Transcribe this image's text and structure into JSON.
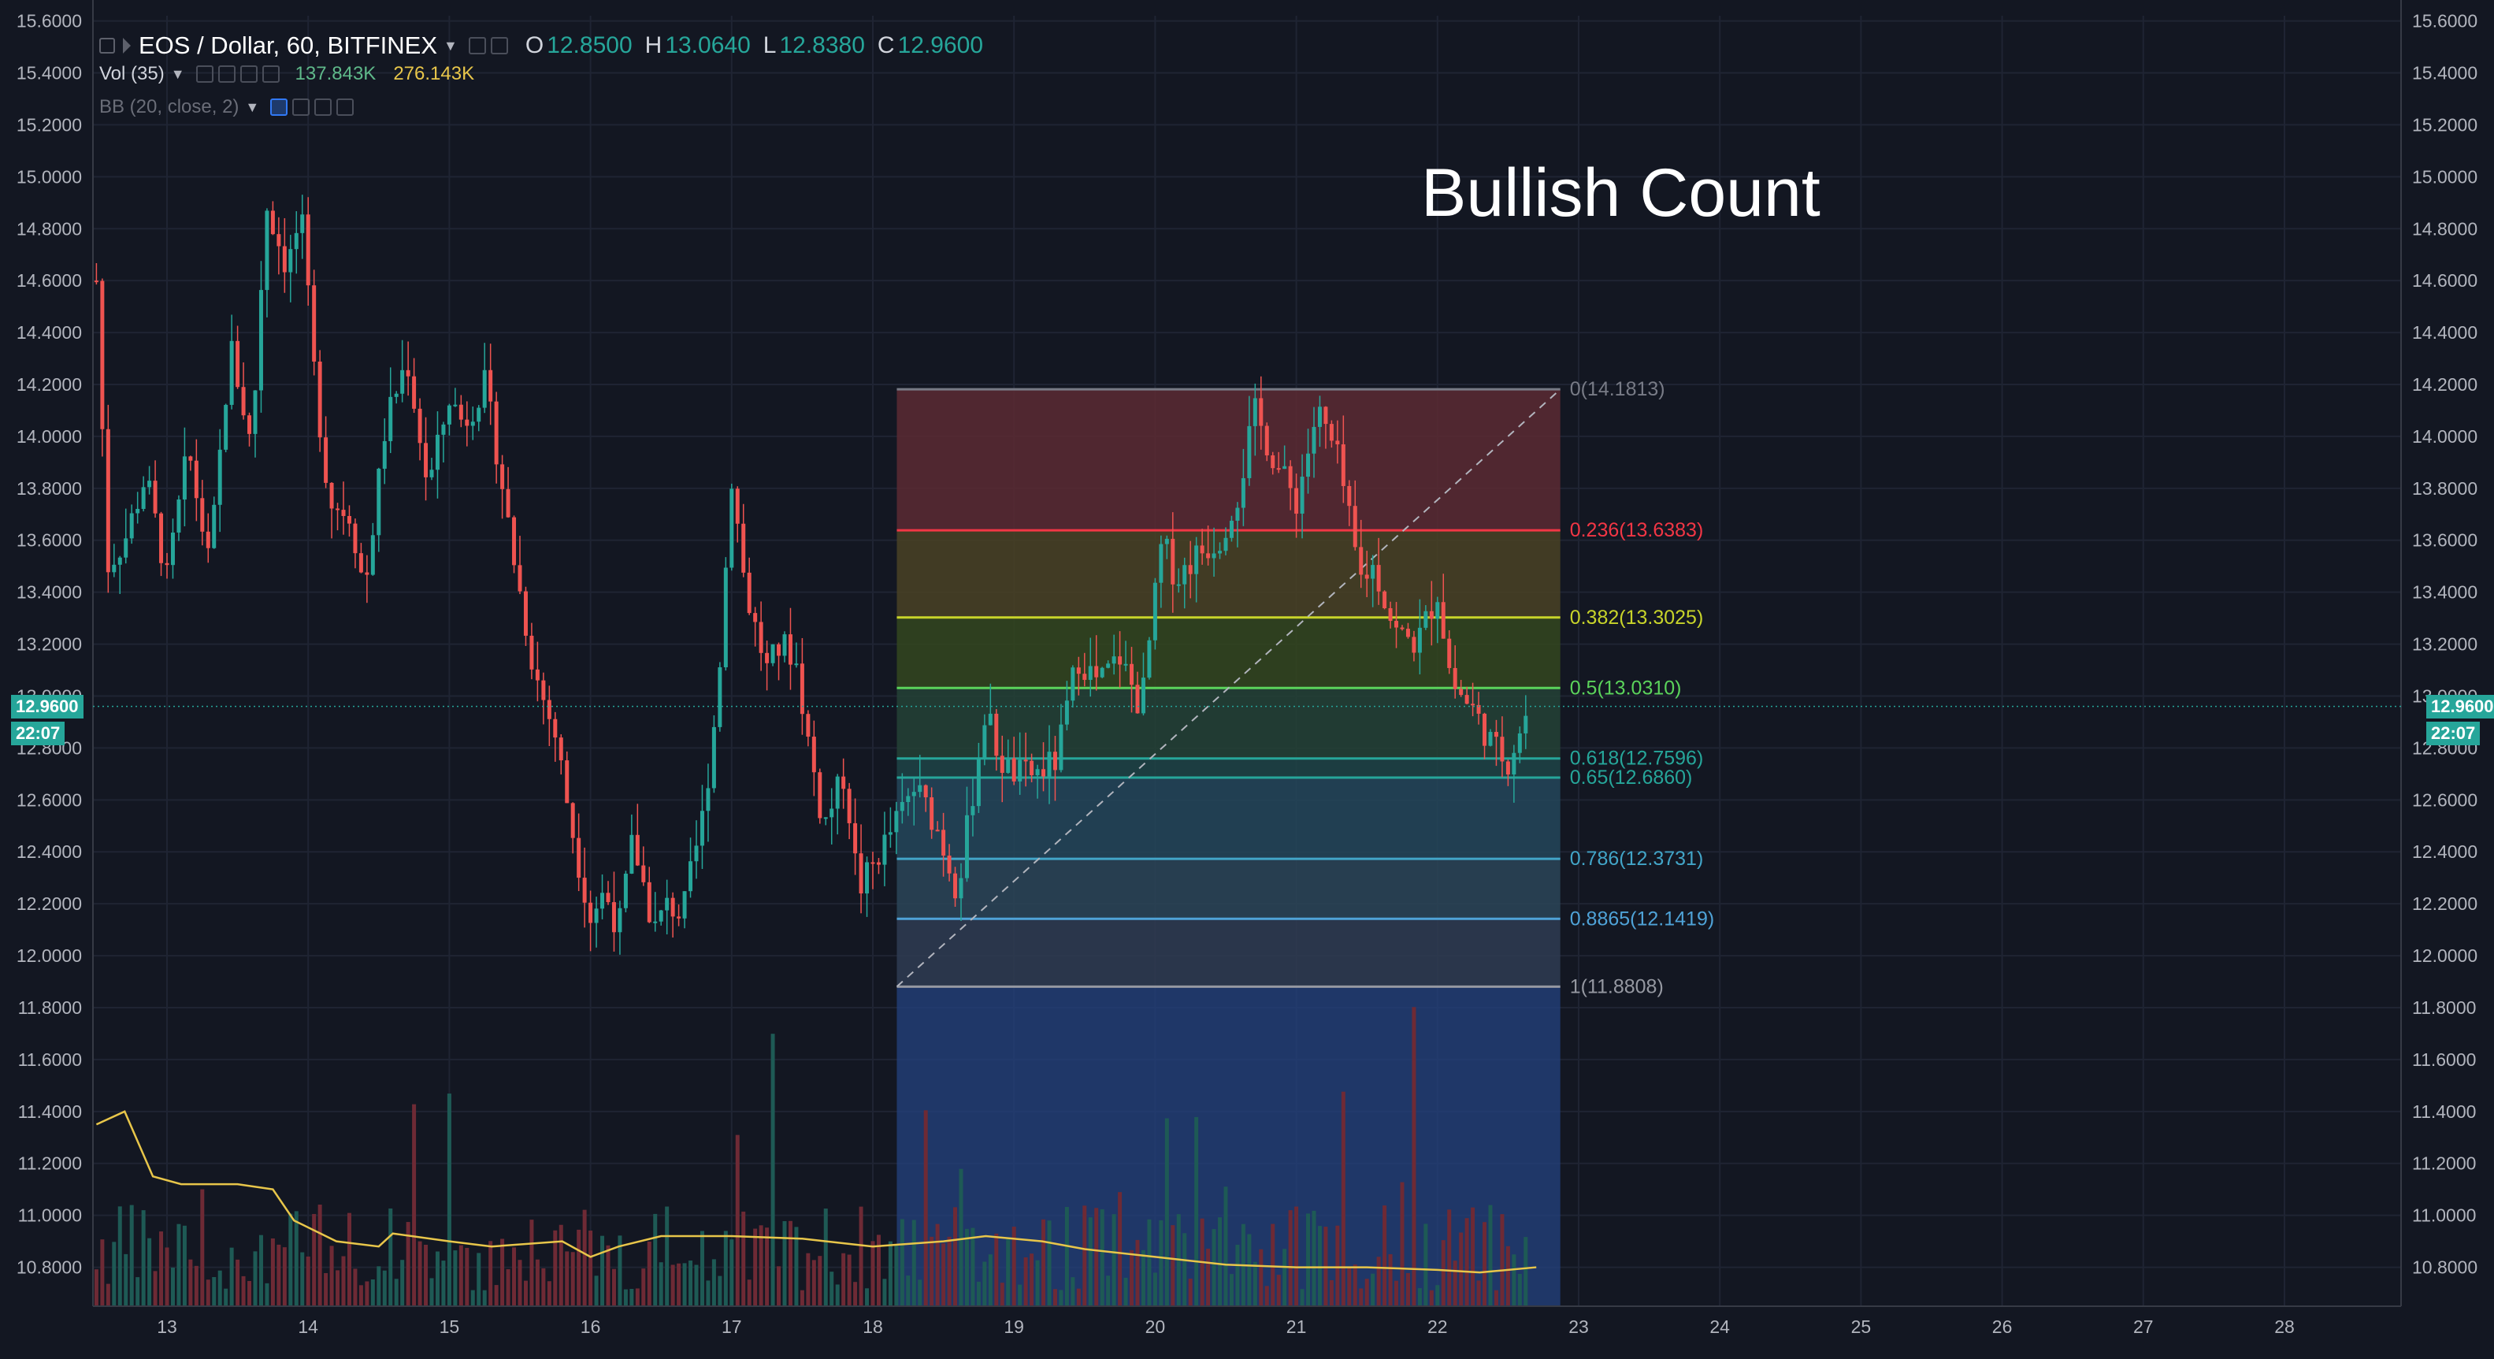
{
  "legend": {
    "symbol": "EOS / Dollar, 60, BITFINEX",
    "open_key": "O",
    "open": "12.8500",
    "high_key": "H",
    "high": "13.0640",
    "low_key": "L",
    "low": "12.8380",
    "close_key": "C",
    "close": "12.9600",
    "volume_label": "Vol (35)",
    "volume_value": "137.843K",
    "volume_ma": "276.143K",
    "bb_label": "BB (20, close, 2)"
  },
  "annotation": "Bullish Count",
  "last_price_label": "12.9600",
  "countdown_label": "22:07",
  "colors": {
    "background": "#131722",
    "up": "#26a69a",
    "down": "#ef5350",
    "volume_ma": "#e8c64a",
    "price_tag": "#26a69a"
  },
  "chart_data": {
    "type": "candlestick",
    "title": "EOS / Dollar, 60, BITFINEX",
    "x_axis": {
      "ticks": [
        "13",
        "14",
        "15",
        "16",
        "17",
        "18",
        "19",
        "20",
        "21",
        "22",
        "23",
        "24",
        "25",
        "26",
        "27",
        "28"
      ],
      "unit": "day of month"
    },
    "y_axis": {
      "range": [
        10.65,
        15.62
      ],
      "ticks": [
        "15.6000",
        "15.4000",
        "15.2000",
        "15.0000",
        "14.8000",
        "14.6000",
        "14.4000",
        "14.2000",
        "14.0000",
        "13.8000",
        "13.6000",
        "13.4000",
        "13.2000",
        "13.0000",
        "12.8000",
        "12.6000",
        "12.4000",
        "12.2000",
        "12.0000",
        "11.8000",
        "11.6000",
        "11.4000",
        "11.2000",
        "11.0000",
        "10.8000"
      ]
    },
    "price_path": [
      [
        12.5,
        14.6
      ],
      [
        12.58,
        13.5
      ],
      [
        12.7,
        13.6
      ],
      [
        12.85,
        13.85
      ],
      [
        13.0,
        13.45
      ],
      [
        13.15,
        13.95
      ],
      [
        13.3,
        13.5
      ],
      [
        13.45,
        14.35
      ],
      [
        13.6,
        13.95
      ],
      [
        13.7,
        14.9
      ],
      [
        13.85,
        14.65
      ],
      [
        13.95,
        14.85
      ],
      [
        14.05,
        14.2
      ],
      [
        14.15,
        13.75
      ],
      [
        14.3,
        13.7
      ],
      [
        14.4,
        13.4
      ],
      [
        14.55,
        14.05
      ],
      [
        14.7,
        14.3
      ],
      [
        14.85,
        13.8
      ],
      [
        15.0,
        14.15
      ],
      [
        15.1,
        14.05
      ],
      [
        15.25,
        14.2
      ],
      [
        15.35,
        13.9
      ],
      [
        15.45,
        13.55
      ],
      [
        15.6,
        13.1
      ],
      [
        15.75,
        12.85
      ],
      [
        15.9,
        12.4
      ],
      [
        16.0,
        12.15
      ],
      [
        16.1,
        12.25
      ],
      [
        16.2,
        12.1
      ],
      [
        16.3,
        12.45
      ],
      [
        16.45,
        12.1
      ],
      [
        16.55,
        12.2
      ],
      [
        16.65,
        12.15
      ],
      [
        16.8,
        12.55
      ],
      [
        16.9,
        13.0
      ],
      [
        17.0,
        13.85
      ],
      [
        17.1,
        13.4
      ],
      [
        17.25,
        13.1
      ],
      [
        17.35,
        13.2
      ],
      [
        17.45,
        13.15
      ],
      [
        17.55,
        12.8
      ],
      [
        17.65,
        12.5
      ],
      [
        17.8,
        12.7
      ],
      [
        17.9,
        12.25
      ],
      [
        18.0,
        12.35
      ],
      [
        18.15,
        12.5
      ],
      [
        18.3,
        12.65
      ],
      [
        18.45,
        12.5
      ],
      [
        18.6,
        12.25
      ],
      [
        18.7,
        12.6
      ],
      [
        18.8,
        12.95
      ],
      [
        18.9,
        12.75
      ],
      [
        19.0,
        12.7
      ],
      [
        19.15,
        12.7
      ],
      [
        19.3,
        12.75
      ],
      [
        19.45,
        13.15
      ],
      [
        19.6,
        13.05
      ],
      [
        19.75,
        13.15
      ],
      [
        19.9,
        12.95
      ],
      [
        20.05,
        13.6
      ],
      [
        20.15,
        13.45
      ],
      [
        20.3,
        13.55
      ],
      [
        20.45,
        13.6
      ],
      [
        20.6,
        13.8
      ],
      [
        20.7,
        14.1
      ],
      [
        20.85,
        13.9
      ],
      [
        21.0,
        13.75
      ],
      [
        21.15,
        14.1
      ],
      [
        21.3,
        13.9
      ],
      [
        21.45,
        13.45
      ],
      [
        21.55,
        13.5
      ],
      [
        21.7,
        13.25
      ],
      [
        21.85,
        13.2
      ],
      [
        22.0,
        13.4
      ],
      [
        22.1,
        13.05
      ],
      [
        22.25,
        12.95
      ],
      [
        22.4,
        12.8
      ],
      [
        22.5,
        12.75
      ],
      [
        22.65,
        12.96
      ]
    ],
    "volume_series": {
      "name": "Vol (35)",
      "moving_average": [
        [
          12.5,
          11.35
        ],
        [
          12.7,
          11.4
        ],
        [
          12.9,
          11.15
        ],
        [
          13.1,
          11.12
        ],
        [
          13.5,
          11.12
        ],
        [
          13.75,
          11.1
        ],
        [
          13.9,
          10.98
        ],
        [
          14.2,
          10.9
        ],
        [
          14.5,
          10.88
        ],
        [
          14.6,
          10.93
        ],
        [
          15.0,
          10.9
        ],
        [
          15.3,
          10.88
        ],
        [
          15.8,
          10.9
        ],
        [
          16.0,
          10.84
        ],
        [
          16.2,
          10.88
        ],
        [
          16.5,
          10.92
        ],
        [
          17.0,
          10.92
        ],
        [
          17.5,
          10.91
        ],
        [
          18.0,
          10.88
        ],
        [
          18.5,
          10.9
        ],
        [
          18.8,
          10.92
        ],
        [
          19.2,
          10.9
        ],
        [
          19.5,
          10.87
        ],
        [
          20.0,
          10.84
        ],
        [
          20.5,
          10.81
        ],
        [
          21.0,
          10.8
        ],
        [
          21.5,
          10.8
        ],
        [
          22.0,
          10.79
        ],
        [
          22.3,
          10.78
        ],
        [
          22.7,
          10.8
        ]
      ]
    },
    "fibonacci_retracement": {
      "x_start": 18.17,
      "x_end": 22.87,
      "levels": [
        {
          "label": "0(14.1813)",
          "value": 14.1813,
          "color": "#787b86",
          "fill": "#5c2a32"
        },
        {
          "label": "0.236(13.6383)",
          "value": 13.6383,
          "color": "#f23645",
          "fill": "#4a4224"
        },
        {
          "label": "0.382(13.3025)",
          "value": 13.3025,
          "color": "#c8d42a",
          "fill": "#34471f"
        },
        {
          "label": "0.5(13.0310)",
          "value": 13.031,
          "color": "#5bd35b",
          "fill": "#244236"
        },
        {
          "label": "0.618(12.7596)",
          "value": 12.7596,
          "color": "#26a69a",
          "fill": "#1f4447"
        },
        {
          "label": "0.65(12.6860)",
          "value": 12.686,
          "color": "#26a69a",
          "fill": "#24475a"
        },
        {
          "label": "0.786(12.3731)",
          "value": 12.3731,
          "color": "#42a5c8",
          "fill": "#2c4558"
        },
        {
          "label": "0.8865(12.1419)",
          "value": 12.1419,
          "color": "#4fa3d8",
          "fill": "#2f3c52"
        },
        {
          "label": "1(11.8808)",
          "value": 11.8808,
          "color": "#9598a1",
          "fill": "#23407a"
        }
      ],
      "trend_line": [
        [
          18.17,
          11.8808
        ],
        [
          22.87,
          14.1813
        ]
      ]
    }
  }
}
